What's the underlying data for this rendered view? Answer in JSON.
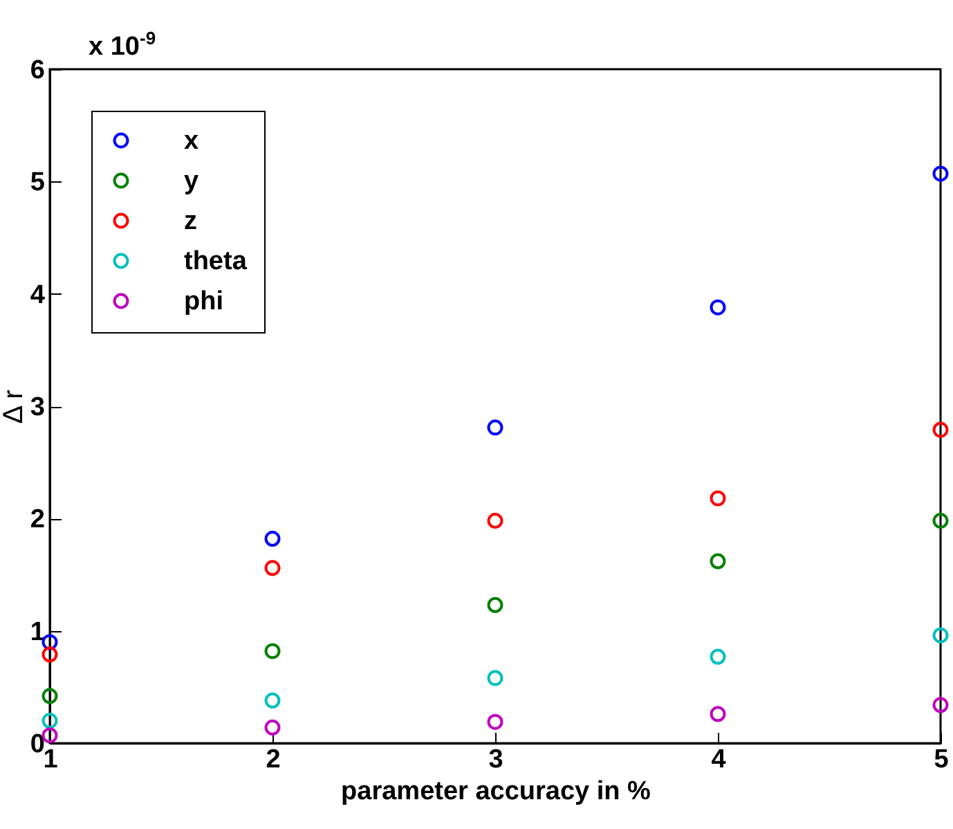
{
  "chart_data": {
    "type": "scatter",
    "xlabel": "parameter accuracy in %",
    "ylabel": "Δ r",
    "annotations": [
      "x 10$^{-9}$"
    ],
    "x": [
      1,
      2,
      3,
      4,
      5
    ],
    "xlim": [
      1,
      5
    ],
    "xticks": [
      1,
      2,
      3,
      4,
      5
    ],
    "ylim": [
      0,
      6
    ],
    "yticks": [
      0,
      1,
      2,
      3,
      4,
      5,
      6
    ],
    "series": [
      {
        "name": "x",
        "color": "#0000ff",
        "values": [
          0.9,
          1.82,
          2.81,
          3.88,
          5.07
        ]
      },
      {
        "name": "y",
        "color": "#008000",
        "values": [
          0.42,
          0.82,
          1.23,
          1.62,
          1.98
        ]
      },
      {
        "name": "z",
        "color": "#ff0000",
        "values": [
          0.79,
          1.56,
          1.98,
          2.18,
          2.79
        ]
      },
      {
        "name": "theta",
        "color": "#00bfbf",
        "values": [
          0.2,
          0.38,
          0.58,
          0.77,
          0.96
        ]
      },
      {
        "name": "phi",
        "color": "#bf00bf",
        "values": [
          0.07,
          0.14,
          0.19,
          0.26,
          0.34
        ]
      }
    ],
    "marker": "circle",
    "grid": false,
    "legend": "top left"
  }
}
